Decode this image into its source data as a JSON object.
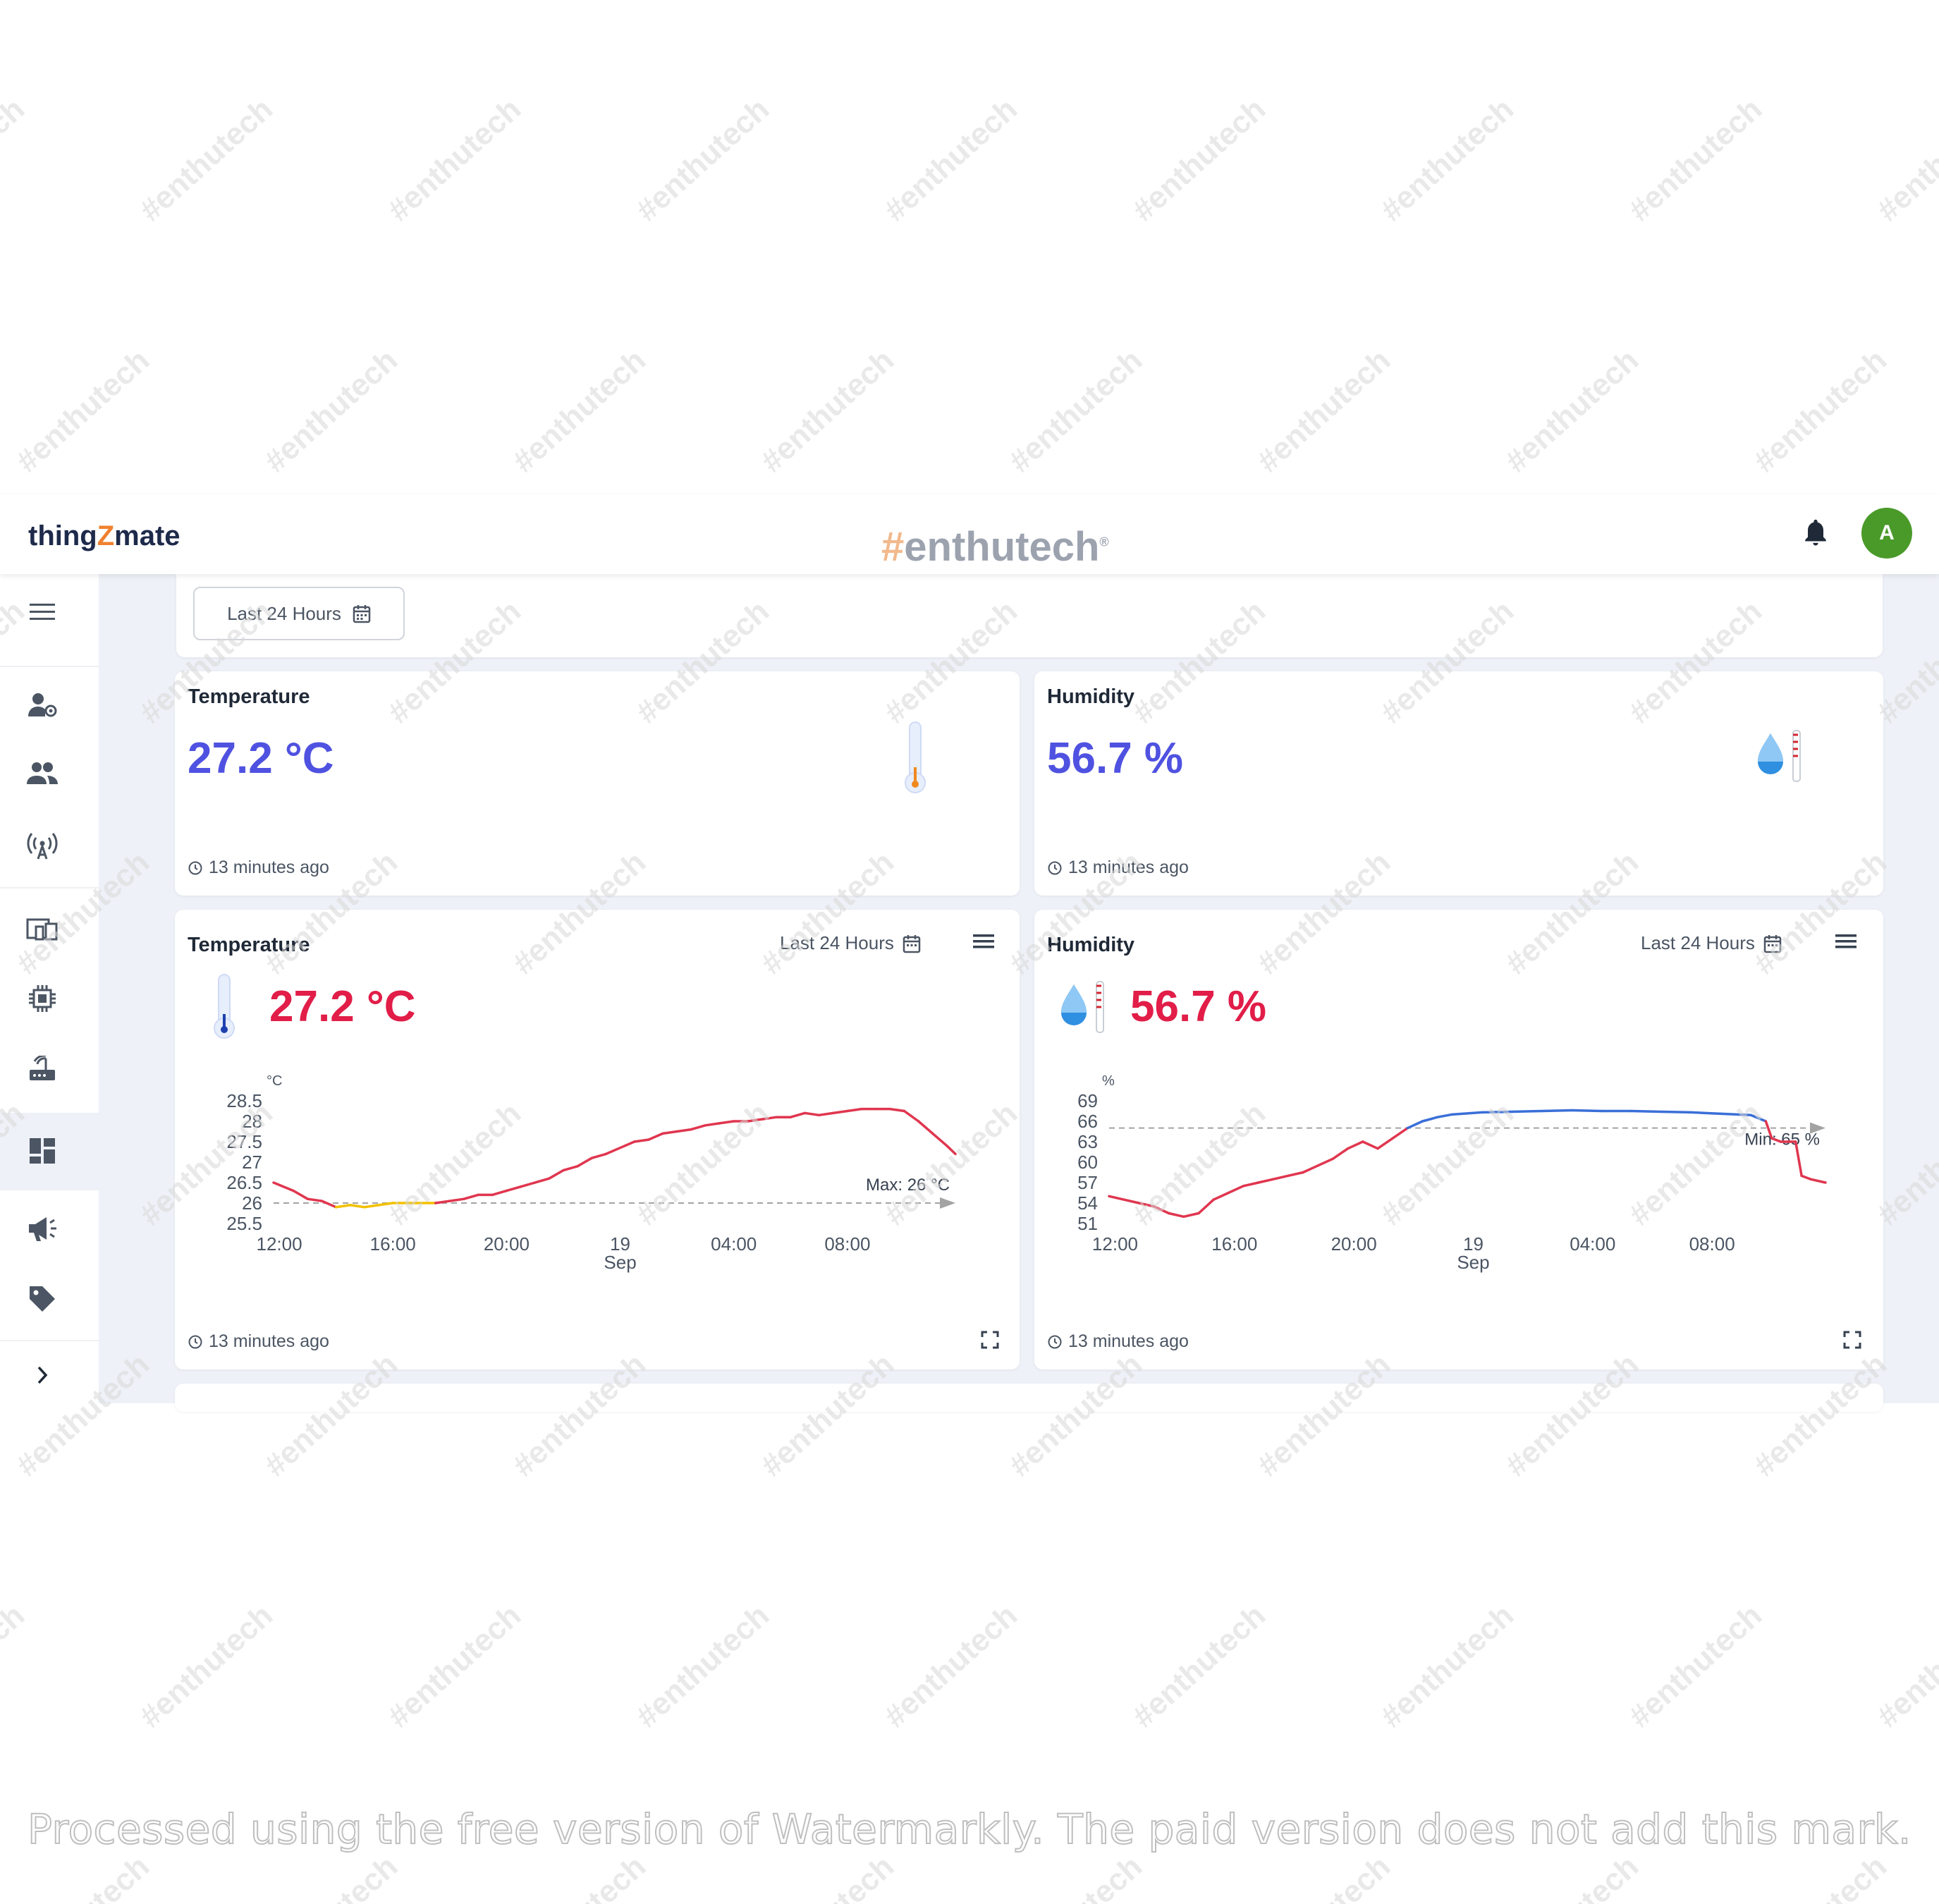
{
  "header": {
    "logo_prefix": "thing",
    "logo_z": "Z",
    "logo_suffix": "mate",
    "brand_hash": "#",
    "brand_name": "enthutech",
    "brand_mark": "®",
    "avatar_initial": "A"
  },
  "sidebar": {
    "items": [
      {
        "icon": "menu-icon"
      },
      {
        "icon": "user-settings-icon"
      },
      {
        "icon": "users-icon"
      },
      {
        "icon": "antenna-icon"
      },
      {
        "icon": "devices-icon"
      },
      {
        "icon": "chip-icon"
      },
      {
        "icon": "router-icon"
      },
      {
        "icon": "dashboard-icon",
        "active": true
      },
      {
        "icon": "megaphone-icon"
      },
      {
        "icon": "tag-icon"
      },
      {
        "icon": "chevron-right-icon"
      }
    ]
  },
  "filter": {
    "range_label": "Last 24 Hours"
  },
  "cards": {
    "temp_value": {
      "title": "Temperature",
      "value": "27.2 °C",
      "updated": "13 minutes ago",
      "icon": "thermometer-icon"
    },
    "hum_value": {
      "title": "Humidity",
      "value": "56.7 %",
      "updated": "13 minutes ago",
      "icon": "water-drop-icon"
    },
    "temp_chart": {
      "title": "Temperature",
      "range_label": "Last 24 Hours",
      "value": "27.2 °C",
      "updated": "13 minutes ago"
    },
    "hum_chart": {
      "title": "Humidity",
      "range_label": "Last 24 Hours",
      "value": "56.7 %",
      "updated": "13 minutes ago"
    }
  },
  "colors": {
    "accent_blue": "#4f52e0",
    "alert_red": "#e11d48",
    "line_red": "#e0364f",
    "line_blue": "#3a6fd8",
    "line_yellow": "#f2c100",
    "avatar_green": "#4a9a2a"
  },
  "watermark": {
    "tile_text": "#enthutech",
    "caption": "Processed using the free version of Watermarkly. The paid version does not add this mark."
  },
  "chart_data": [
    {
      "type": "line",
      "title": "Temperature",
      "unit": "°C",
      "y_ticks": [
        "28.5",
        "28",
        "27.5",
        "27",
        "26.5",
        "26",
        "25.5"
      ],
      "ylim": [
        25.5,
        28.5
      ],
      "x_ticks": [
        "12:00",
        "16:00",
        "20:00",
        "19",
        "04:00",
        "08:00"
      ],
      "x_subtick": "Sep",
      "xlim": [
        -0.2,
        23.8
      ],
      "threshold": {
        "label": "Max:  26 °C",
        "value": 26
      },
      "series": [
        {
          "x": [
            -0.2,
            0.5,
            1.0,
            1.5,
            2.0,
            2.5,
            3.0,
            3.5,
            4.0,
            4.5,
            5.0,
            5.5,
            6.0,
            6.5,
            7.0,
            7.5,
            8.0,
            8.5,
            9.0,
            9.5,
            10.0,
            10.5,
            11.0,
            11.5,
            12.0,
            12.5,
            13.0,
            13.5,
            14.0,
            14.5,
            15.0,
            15.5,
            16.0,
            16.5,
            17.0,
            17.5,
            18.0,
            18.5,
            19.0,
            19.5,
            20.0,
            20.5,
            21.0,
            21.5,
            22.0,
            22.5,
            23.0,
            23.5,
            23.8
          ],
          "y": [
            26.5,
            26.3,
            26.1,
            26.05,
            25.9,
            25.95,
            25.9,
            25.95,
            26.0,
            26.0,
            26.0,
            26.0,
            26.05,
            26.1,
            26.2,
            26.2,
            26.3,
            26.4,
            26.5,
            26.6,
            26.8,
            26.9,
            27.1,
            27.2,
            27.35,
            27.5,
            27.55,
            27.7,
            27.75,
            27.8,
            27.9,
            27.95,
            28.0,
            28.0,
            28.05,
            28.1,
            28.1,
            28.2,
            28.15,
            28.2,
            28.25,
            28.3,
            28.3,
            28.3,
            28.25,
            28.0,
            27.7,
            27.4,
            27.2
          ]
        }
      ]
    },
    {
      "type": "line",
      "title": "Humidity",
      "unit": "%",
      "y_ticks": [
        "69",
        "66",
        "63",
        "60",
        "57",
        "54",
        "51"
      ],
      "ylim": [
        51,
        69
      ],
      "x_ticks": [
        "12:00",
        "16:00",
        "20:00",
        "19",
        "04:00",
        "08:00"
      ],
      "x_subtick": "Sep",
      "xlim": [
        -0.2,
        23.8
      ],
      "threshold": {
        "label": "Min: 65 %",
        "value": 65
      },
      "series": [
        {
          "x": [
            -0.2,
            0.3,
            0.8,
            1.3,
            1.8,
            2.3,
            2.8,
            3.3,
            3.8,
            4.3,
            4.8,
            5.3,
            5.8,
            6.3,
            6.8,
            7.3,
            7.8,
            8.3,
            8.8,
            9.3,
            9.8,
            10.3,
            10.8,
            11.3,
            12.3,
            13.3,
            14.3,
            15.3,
            16.3,
            17.3,
            18.3,
            19.3,
            20.3,
            21.3,
            21.8,
            22.0,
            22.3,
            22.8,
            23.0,
            23.3,
            23.8
          ],
          "y": [
            55.0,
            54.5,
            54.0,
            53.5,
            52.5,
            52.0,
            52.5,
            54.5,
            55.5,
            56.5,
            57.0,
            57.5,
            58.0,
            58.5,
            59.5,
            60.5,
            62.0,
            63.0,
            62.0,
            63.5,
            65.0,
            66.0,
            66.6,
            67.0,
            67.3,
            67.4,
            67.5,
            67.6,
            67.5,
            67.5,
            67.4,
            67.3,
            67.1,
            66.9,
            66.0,
            63.5,
            63.0,
            63.0,
            58.0,
            57.5,
            57.0
          ]
        }
      ]
    }
  ]
}
